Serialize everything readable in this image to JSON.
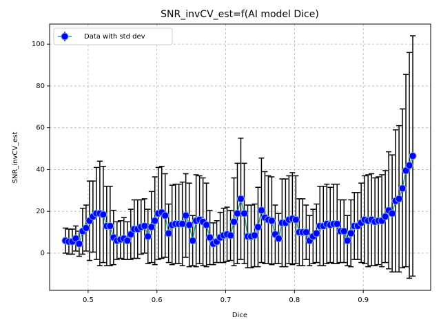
{
  "chart_data": {
    "type": "errorbar",
    "title": "SNR_invCV_est=f(AI model Dice)",
    "x_label": "Dice",
    "y_label": "SNR_invCV_est",
    "xlim": [
      0.444,
      0.998
    ],
    "ylim": [
      -17.8,
      109.6
    ],
    "xticks": [
      0.5,
      0.6,
      0.7,
      0.8,
      0.9
    ],
    "yticks": [
      0,
      20,
      40,
      60,
      80,
      100
    ],
    "grid": true,
    "legend": "upper left",
    "series": [
      {
        "name": "Data with std dev",
        "color": "#0000ff",
        "line_color": "#1f9e89",
        "errorbar_color": "#000000",
        "x": [
          0.467,
          0.472,
          0.477,
          0.482,
          0.487,
          0.492,
          0.497,
          0.502,
          0.507,
          0.512,
          0.517,
          0.522,
          0.527,
          0.532,
          0.537,
          0.542,
          0.547,
          0.552,
          0.557,
          0.562,
          0.567,
          0.572,
          0.577,
          0.582,
          0.587,
          0.592,
          0.597,
          0.602,
          0.607,
          0.612,
          0.617,
          0.622,
          0.627,
          0.632,
          0.637,
          0.642,
          0.647,
          0.652,
          0.657,
          0.662,
          0.667,
          0.672,
          0.677,
          0.682,
          0.687,
          0.692,
          0.697,
          0.702,
          0.707,
          0.712,
          0.717,
          0.722,
          0.727,
          0.732,
          0.737,
          0.742,
          0.747,
          0.752,
          0.757,
          0.762,
          0.767,
          0.772,
          0.777,
          0.782,
          0.787,
          0.792,
          0.797,
          0.802,
          0.807,
          0.812,
          0.817,
          0.822,
          0.827,
          0.832,
          0.837,
          0.842,
          0.847,
          0.852,
          0.857,
          0.862,
          0.867,
          0.872,
          0.877,
          0.882,
          0.887,
          0.892,
          0.897,
          0.902,
          0.907,
          0.912,
          0.917,
          0.922,
          0.927,
          0.932,
          0.937,
          0.942,
          0.947,
          0.952,
          0.957,
          0.962,
          0.967,
          0.972
        ],
        "values": [
          6,
          5.5,
          5.5,
          7,
          4.5,
          10.5,
          12,
          15.5,
          17.5,
          19,
          19,
          18.5,
          13,
          13,
          7.5,
          6,
          6.5,
          7,
          6,
          9,
          11.5,
          11.5,
          12.5,
          13,
          8,
          12.5,
          15.5,
          19,
          19.5,
          18,
          9.5,
          13.5,
          14,
          14,
          14,
          18,
          13.5,
          6,
          15.5,
          16,
          15,
          13.5,
          7.5,
          4.5,
          5.5,
          7.5,
          8.5,
          9,
          8.5,
          15,
          19,
          26,
          19,
          8,
          8,
          8.5,
          12.5,
          20.5,
          17,
          16,
          15.5,
          9,
          7,
          14.5,
          14.5,
          16,
          16.5,
          16,
          10,
          10,
          10,
          6,
          8,
          9.5,
          13,
          13,
          14,
          13.5,
          14,
          14,
          10.5,
          10.5,
          6,
          9.5,
          13,
          13,
          14.5,
          16,
          15.5,
          16,
          15,
          15.5,
          15.5,
          17.5,
          20.5,
          19,
          25,
          26,
          31,
          39.5,
          42,
          46.5
        ],
        "errors": [
          6,
          6,
          6,
          6,
          6,
          11,
          11,
          19,
          17,
          22,
          25,
          23,
          19,
          19,
          13,
          9,
          9,
          10,
          9,
          12,
          14,
          14,
          13,
          13,
          13,
          17,
          21,
          22,
          22,
          20,
          14,
          19,
          19,
          19,
          20,
          20,
          20,
          12,
          22,
          21,
          21,
          20,
          13,
          10,
          10,
          12,
          13,
          13,
          12,
          21,
          24,
          29,
          24,
          15,
          15,
          15,
          19,
          25,
          22,
          21,
          21,
          14,
          12,
          21,
          21,
          21,
          22,
          21,
          16,
          16,
          13,
          12,
          13,
          14,
          19,
          19,
          19,
          18,
          19,
          19,
          15,
          15,
          12,
          16,
          16,
          16,
          19,
          21,
          22,
          22,
          21,
          21,
          22,
          22,
          28,
          28,
          34,
          35,
          38,
          46,
          54,
          57.5
        ]
      }
    ]
  }
}
